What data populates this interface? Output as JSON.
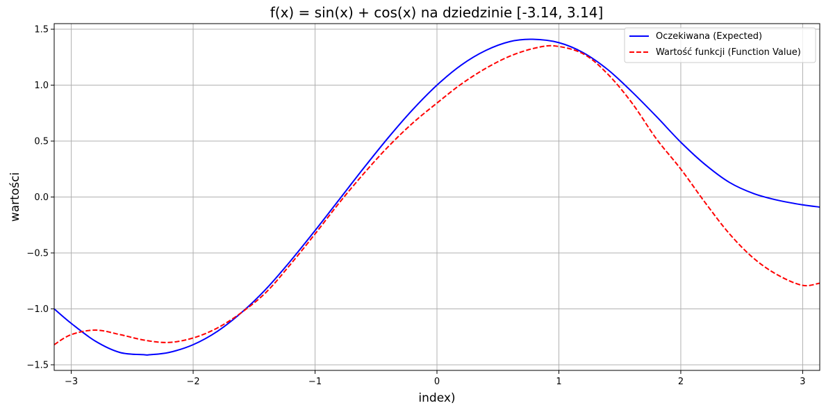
{
  "chart_data": {
    "type": "line",
    "title": "f(x) = sin(x) + cos(x) na dziedzinie [-3.14, 3.14]",
    "xlabel": "index)",
    "ylabel": "wartości",
    "xlim": [
      -3.14,
      3.14
    ],
    "ylim": [
      -1.55,
      1.55
    ],
    "grid": true,
    "legend_position": "top-right",
    "x_ticks": [
      -3,
      -2,
      -1,
      0,
      1,
      2,
      3
    ],
    "x_tick_labels": [
      "−3",
      "−2",
      "−1",
      "0",
      "1",
      "2",
      "3"
    ],
    "y_ticks": [
      -1.5,
      -1.0,
      -0.5,
      0.0,
      0.5,
      1.0,
      1.5
    ],
    "y_tick_labels": [
      "−1.5",
      "−1.0",
      "−0.5",
      "0.0",
      "0.5",
      "1.0",
      "1.5"
    ],
    "series": [
      {
        "name": "Oczekiwana (Expected)",
        "color": "#0000ff",
        "style": "solid",
        "x": [
          -3.14,
          -3.0,
          -2.8,
          -2.6,
          -2.4,
          -2.36,
          -2.2,
          -2.0,
          -1.8,
          -1.6,
          -1.4,
          -1.2,
          -1.0,
          -0.8,
          -0.6,
          -0.4,
          -0.2,
          0.0,
          0.2,
          0.4,
          0.6,
          0.785,
          1.0,
          1.2,
          1.4,
          1.6,
          1.8,
          2.0,
          2.2,
          2.4,
          2.6,
          2.8,
          3.0,
          3.14
        ],
        "y": [
          -1.0,
          -1.13,
          -1.29,
          -1.39,
          -1.41,
          -1.41,
          -1.39,
          -1.32,
          -1.2,
          -1.03,
          -0.82,
          -0.57,
          -0.3,
          -0.02,
          0.26,
          0.53,
          0.78,
          1.0,
          1.18,
          1.31,
          1.39,
          1.41,
          1.38,
          1.29,
          1.14,
          0.94,
          0.72,
          0.49,
          0.29,
          0.13,
          0.03,
          -0.03,
          -0.07,
          -0.09
        ]
      },
      {
        "name": "Wartość funkcji (Function Value)",
        "color": "#ff0000",
        "style": "dashed",
        "x": [
          -3.14,
          -3.0,
          -2.8,
          -2.6,
          -2.4,
          -2.2,
          -2.0,
          -1.8,
          -1.6,
          -1.4,
          -1.2,
          -1.0,
          -0.8,
          -0.6,
          -0.4,
          -0.2,
          0.0,
          0.2,
          0.4,
          0.6,
          0.8,
          0.97,
          1.2,
          1.4,
          1.6,
          1.8,
          2.0,
          2.2,
          2.4,
          2.6,
          2.8,
          3.0,
          3.14
        ],
        "y": [
          -1.32,
          -1.23,
          -1.19,
          -1.23,
          -1.28,
          -1.3,
          -1.26,
          -1.17,
          -1.03,
          -0.85,
          -0.6,
          -0.33,
          -0.05,
          0.21,
          0.45,
          0.66,
          0.84,
          1.01,
          1.15,
          1.26,
          1.33,
          1.35,
          1.28,
          1.1,
          0.84,
          0.52,
          0.25,
          -0.05,
          -0.33,
          -0.55,
          -0.7,
          -0.79,
          -0.77
        ]
      }
    ]
  }
}
